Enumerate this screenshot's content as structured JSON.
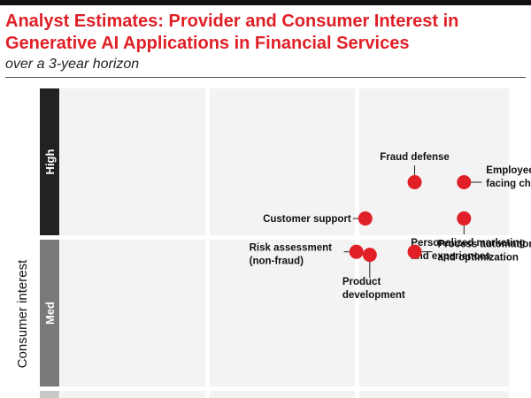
{
  "chart_data": {
    "type": "scatter",
    "title": "Analyst Estimates: Provider and Consumer Interest in Generative AI Applications in Financial Services",
    "subtitle": "over a 3-year horizon",
    "ylabel": "Consumer interest",
    "y_bands": [
      "High",
      "Med"
    ],
    "x_scale": "provider interest (0-100)",
    "y_scale": "consumer interest (0-100)",
    "points": [
      {
        "label": [
          "Fraud defense"
        ],
        "x": 79,
        "y": 69
      },
      {
        "label": [
          "Employee-",
          "facing chat"
        ],
        "x": 90,
        "y": 69
      },
      {
        "label": [
          "Customer support"
        ],
        "x": 68,
        "y": 57
      },
      {
        "label": [
          "Personalized marketing",
          "and experiences"
        ],
        "x": 90,
        "y": 57
      },
      {
        "label": [
          "Risk assessment",
          "(non-fraud)"
        ],
        "x": 66,
        "y": 46
      },
      {
        "label": [
          "Product",
          "development"
        ],
        "x": 69,
        "y": 45
      },
      {
        "label": [
          "Process automation",
          "and optimization"
        ],
        "x": 79,
        "y": 46
      }
    ]
  },
  "colors": {
    "accent": "#e01f26",
    "band_high": "#222222",
    "band_med": "#7a7a7a"
  }
}
